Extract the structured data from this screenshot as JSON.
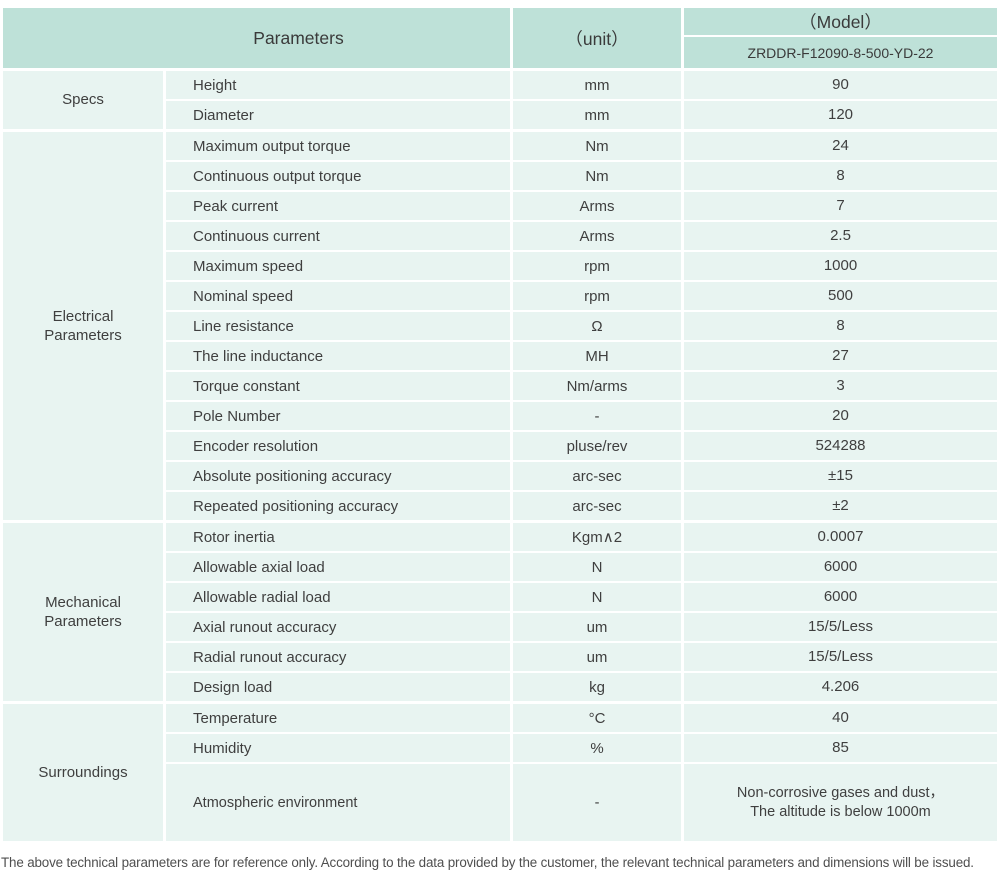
{
  "colors": {
    "header_background": "#bee1d8",
    "row_background": "#e8f4f1",
    "text": "#3f3f3f",
    "footer_text": "#4f4f4f"
  },
  "header": {
    "parameters_label": "Parameters",
    "unit_label": "（unit）",
    "model_label": "（Model）",
    "model_value": "ZRDDR-F12090-8-500-YD-22"
  },
  "sections": [
    {
      "label": "Specs",
      "rows": [
        {
          "name": "Height",
          "unit": "mm",
          "value": "90"
        },
        {
          "name": "Diameter",
          "unit": "mm",
          "value": "120"
        }
      ]
    },
    {
      "label": "Electrical\nParameters",
      "rows": [
        {
          "name": "Maximum output torque",
          "unit": "Nm",
          "value": "24"
        },
        {
          "name": "Continuous output torque",
          "unit": "Nm",
          "value": "8"
        },
        {
          "name": "Peak current",
          "unit": "Arms",
          "value": "7"
        },
        {
          "name": "Continuous current",
          "unit": "Arms",
          "value": "2.5"
        },
        {
          "name": "Maximum speed",
          "unit": "rpm",
          "value": "1000"
        },
        {
          "name": "Nominal speed",
          "unit": "rpm",
          "value": "500"
        },
        {
          "name": "Line resistance",
          "unit": "Ω",
          "value": "8"
        },
        {
          "name": "The line inductance",
          "unit": "MH",
          "value": "27"
        },
        {
          "name": "Torque constant",
          "unit": "Nm/arms",
          "value": "3"
        },
        {
          "name": "Pole Number",
          "unit": "-",
          "value": "20"
        },
        {
          "name": "Encoder resolution",
          "unit": "pluse/rev",
          "value": "524288"
        },
        {
          "name": "Absolute positioning accuracy",
          "unit": "arc-sec",
          "value": "±15"
        },
        {
          "name": "Repeated positioning accuracy",
          "unit": "arc-sec",
          "value": "±2"
        }
      ]
    },
    {
      "label": "Mechanical\nParameters",
      "rows": [
        {
          "name": "Rotor inertia",
          "unit": "Kgm∧2",
          "value": "0.0007"
        },
        {
          "name": "Allowable axial load",
          "unit": "N",
          "value": "6000"
        },
        {
          "name": "Allowable radial load",
          "unit": "N",
          "value": "6000"
        },
        {
          "name": "Axial runout accuracy",
          "unit": "um",
          "value": "15/5/Less"
        },
        {
          "name": "Radial runout accuracy",
          "unit": "um",
          "value": "15/5/Less"
        },
        {
          "name": "Design load",
          "unit": "kg",
          "value": "4.206"
        }
      ]
    },
    {
      "label": "Surroundings",
      "rows": [
        {
          "name": "Temperature",
          "unit": "°C",
          "value": "40"
        },
        {
          "name": "Humidity",
          "unit": "%",
          "value": "85"
        },
        {
          "name": "Atmospheric environment",
          "unit": "-",
          "value": "Non-corrosive gases and dust，\nThe altitude is below 1000m"
        }
      ]
    }
  ],
  "footer": {
    "note": "The above technical parameters are for reference only. According to the data provided by the customer, the relevant technical parameters and dimensions will be issued."
  }
}
